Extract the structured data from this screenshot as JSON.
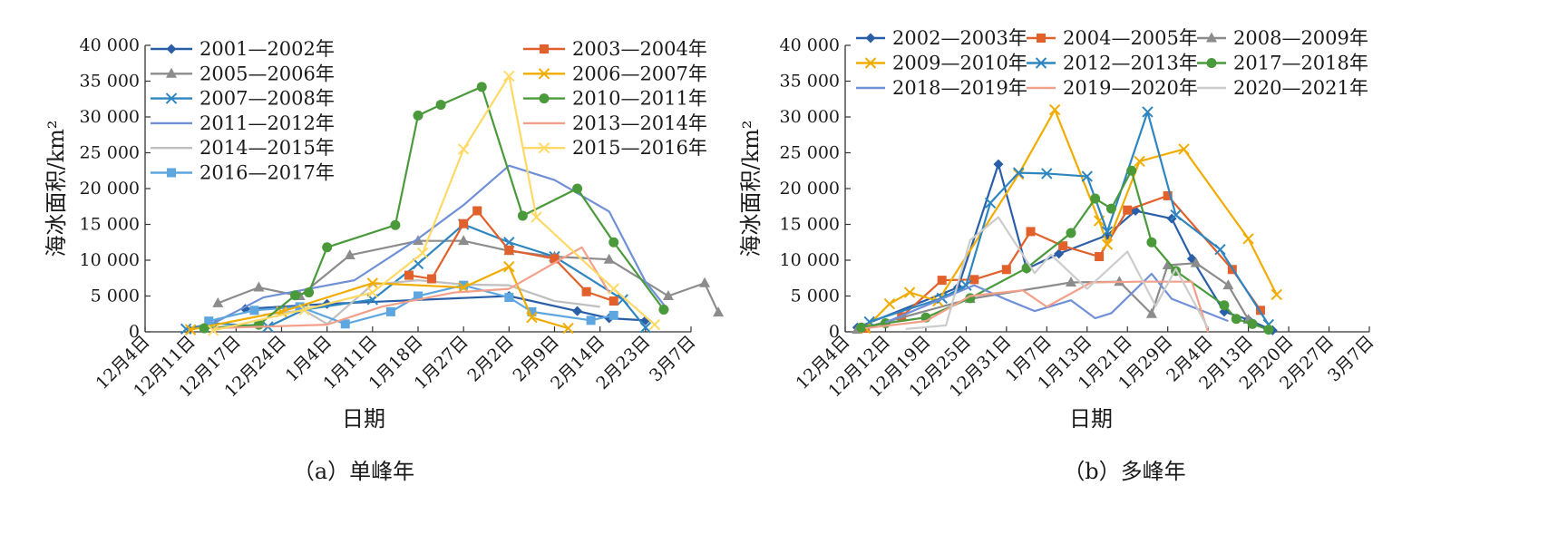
{
  "chart_data": [
    {
      "type": "line",
      "caption": "（a）单峰年",
      "xlabel": "日期",
      "ylabel": "海冰面积/km²",
      "ylim": [
        0,
        40000
      ],
      "yticks": [
        0,
        5000,
        10000,
        15000,
        20000,
        25000,
        30000,
        35000,
        40000
      ],
      "ytick_labels": [
        "0",
        "5 000",
        "10 000",
        "15 000",
        "20 000",
        "25 000",
        "30 000",
        "35 000",
        "40 000"
      ],
      "xticks": [
        "12月4日",
        "12月11日",
        "12月17日",
        "12月24日",
        "1月4日",
        "1月11日",
        "1月18日",
        "1月27日",
        "2月2日",
        "2月9日",
        "2月14日",
        "2月23日",
        "3月7日"
      ],
      "legend": "top-left and top-right",
      "series": [
        {
          "name": "2001—2002年",
          "color": "#2a5fa8",
          "marker": "diamond",
          "points": [
            [
              2.2,
              3200
            ],
            [
              4,
              3900
            ],
            [
              8,
              5000
            ],
            [
              9.5,
              2900
            ],
            [
              10.2,
              1900
            ],
            [
              11,
              1600
            ]
          ]
        },
        {
          "name": "2005—2006年",
          "color": "#8c8c8c",
          "marker": "triangle",
          "points": [
            [
              1.6,
              4000
            ],
            [
              2.5,
              6200
            ],
            [
              3.4,
              5000
            ],
            [
              4.5,
              10700
            ],
            [
              6,
              12700
            ],
            [
              7,
              12700
            ],
            [
              8,
              11300
            ],
            [
              9,
              10500
            ],
            [
              10.2,
              10100
            ],
            [
              11.5,
              5000
            ],
            [
              12.3,
              6800
            ],
            [
              12.6,
              2700
            ]
          ]
        },
        {
          "name": "2007—2008年",
          "color": "#2e86c1",
          "marker": "x",
          "points": [
            [
              0.9,
              400
            ],
            [
              1.5,
              1200
            ],
            [
              2.7,
              700
            ],
            [
              3.5,
              3100
            ],
            [
              5,
              4500
            ],
            [
              6,
              9500
            ],
            [
              7,
              15000
            ],
            [
              8,
              12500
            ],
            [
              9,
              10500
            ],
            [
              10.5,
              4500
            ],
            [
              11,
              600
            ]
          ]
        },
        {
          "name": "2011—2012年",
          "color": "#6f8fd6",
          "marker": "none",
          "points": [
            [
              1.2,
              200
            ],
            [
              2.6,
              4800
            ],
            [
              3.6,
              6000
            ],
            [
              4.6,
              7200
            ],
            [
              6,
              13000
            ],
            [
              7,
              17700
            ],
            [
              8,
              23200
            ],
            [
              9,
              21200
            ],
            [
              10.2,
              16800
            ],
            [
              11,
              7000
            ],
            [
              11.5,
              3000
            ]
          ]
        },
        {
          "name": "2014—2015年",
          "color": "#bfbfbf",
          "marker": "none",
          "points": [
            [
              2.6,
              2400
            ],
            [
              3.5,
              3000
            ],
            [
              4,
              1100
            ],
            [
              5,
              6600
            ],
            [
              6,
              7200
            ],
            [
              7,
              6600
            ],
            [
              8,
              6500
            ],
            [
              9,
              4300
            ],
            [
              10,
              3500
            ]
          ]
        },
        {
          "name": "2016—2017年",
          "color": "#5ea6e0",
          "marker": "square",
          "points": [
            [
              1.4,
              1500
            ],
            [
              2.4,
              3000
            ],
            [
              3.4,
              3500
            ],
            [
              4.4,
              1100
            ],
            [
              5.4,
              2800
            ],
            [
              6,
              5000
            ],
            [
              7,
              6500
            ],
            [
              8,
              4800
            ],
            [
              8.5,
              2800
            ],
            [
              9.8,
              1600
            ],
            [
              10.3,
              2300
            ]
          ]
        },
        {
          "name": "2003—2004年",
          "color": "#e2602b",
          "marker": "square",
          "points": [
            [
              5.8,
              7900
            ],
            [
              6.3,
              7400
            ],
            [
              7,
              15100
            ],
            [
              7.3,
              16900
            ],
            [
              8,
              11400
            ],
            [
              9,
              10200
            ],
            [
              9.7,
              5600
            ],
            [
              10.3,
              4300
            ]
          ]
        },
        {
          "name": "2006—2007年",
          "color": "#f0ad00",
          "marker": "x",
          "points": [
            [
              1,
              300
            ],
            [
              3,
              2800
            ],
            [
              5,
              6800
            ],
            [
              7,
              6200
            ],
            [
              8,
              9100
            ],
            [
              8.5,
              2000
            ],
            [
              9.3,
              500
            ]
          ]
        },
        {
          "name": "2010—2011年",
          "color": "#4a9a3b",
          "marker": "circle",
          "points": [
            [
              1.3,
              500
            ],
            [
              2.5,
              1000
            ],
            [
              3.3,
              5100
            ],
            [
              3.6,
              5500
            ],
            [
              4,
              11800
            ],
            [
              5.5,
              14900
            ],
            [
              6,
              30200
            ],
            [
              6.5,
              31700
            ],
            [
              7.4,
              34200
            ],
            [
              8.3,
              16200
            ],
            [
              9.5,
              20000
            ],
            [
              10.3,
              12500
            ],
            [
              11.4,
              3100
            ]
          ]
        },
        {
          "name": "2013—2014年",
          "color": "#f2a08a",
          "marker": "none",
          "points": [
            [
              1.5,
              500
            ],
            [
              4,
              1000
            ],
            [
              5.2,
              3500
            ],
            [
              6.8,
              5500
            ],
            [
              8,
              6000
            ],
            [
              9.6,
              11800
            ],
            [
              10.2,
              5500
            ]
          ]
        },
        {
          "name": "2015—2016年",
          "color": "#ffd966",
          "marker": "x",
          "points": [
            [
              1.5,
              200
            ],
            [
              3.5,
              3100
            ],
            [
              5,
              5500
            ],
            [
              6.1,
              11000
            ],
            [
              7,
              25500
            ],
            [
              8,
              35700
            ],
            [
              8.6,
              16000
            ],
            [
              10.3,
              6000
            ],
            [
              11.2,
              1000
            ]
          ]
        }
      ]
    },
    {
      "type": "line",
      "caption": "（b）多峰年",
      "xlabel": "日期",
      "ylabel": "海冰面积/km²",
      "ylim": [
        0,
        40000
      ],
      "yticks": [
        0,
        5000,
        10000,
        15000,
        20000,
        25000,
        30000,
        35000,
        40000
      ],
      "ytick_labels": [
        "0",
        "5 000",
        "10 000",
        "15 000",
        "20 000",
        "25 000",
        "30 000",
        "35 000",
        "40 000"
      ],
      "xticks": [
        "12月4日",
        "12月12日",
        "12月19日",
        "12月25日",
        "12月31日",
        "1月7日",
        "1月13日",
        "1月21日",
        "1月29日",
        "2月4日",
        "2月13日",
        "2月20日",
        "2月27日",
        "3月7日"
      ],
      "legend": "top",
      "series": [
        {
          "name": "2002—2003年",
          "color": "#2a5fa8",
          "marker": "diamond",
          "points": [
            [
              0.3,
              600
            ],
            [
              2.8,
              6200
            ],
            [
              3.8,
              23400
            ],
            [
              4.5,
              8800
            ],
            [
              5.3,
              10900
            ],
            [
              6.5,
              13500
            ],
            [
              7.2,
              16900
            ],
            [
              8.1,
              15800
            ],
            [
              8.6,
              10200
            ],
            [
              9.4,
              2800
            ],
            [
              10,
              1700
            ],
            [
              10.6,
              200
            ]
          ]
        },
        {
          "name": "2004—2005年",
          "color": "#e2602b",
          "marker": "square",
          "points": [
            [
              0.5,
              500
            ],
            [
              1.4,
              2100
            ],
            [
              2.4,
              7200
            ],
            [
              3.2,
              7300
            ],
            [
              4,
              8700
            ],
            [
              4.6,
              14000
            ],
            [
              5.4,
              12000
            ],
            [
              6.3,
              10500
            ],
            [
              7,
              17000
            ],
            [
              8,
              19000
            ],
            [
              9.6,
              8700
            ],
            [
              10.3,
              3000
            ]
          ]
        },
        {
          "name": "2008—2009年",
          "color": "#8c8c8c",
          "marker": "triangle",
          "points": [
            [
              0.3,
              300
            ],
            [
              3.1,
              4600
            ],
            [
              5.6,
              6900
            ],
            [
              6.8,
              7000
            ],
            [
              7.6,
              2500
            ],
            [
              8,
              9300
            ],
            [
              8.7,
              9600
            ],
            [
              9.5,
              6500
            ],
            [
              10,
              1700
            ]
          ]
        },
        {
          "name": "2009—2010年",
          "color": "#f0ad00",
          "marker": "x",
          "points": [
            [
              0.5,
              500
            ],
            [
              1.1,
              3900
            ],
            [
              1.6,
              5500
            ],
            [
              2.3,
              4300
            ],
            [
              4.3,
              22000
            ],
            [
              5.2,
              31000
            ],
            [
              6.3,
              15500
            ],
            [
              6.5,
              12200
            ],
            [
              7.3,
              23800
            ],
            [
              8.4,
              25500
            ],
            [
              10,
              13000
            ],
            [
              10.7,
              5200
            ]
          ]
        },
        {
          "name": "2012—2013年",
          "color": "#2e86c1",
          "marker": "x",
          "points": [
            [
              0.6,
              1400
            ],
            [
              2.4,
              4700
            ],
            [
              3,
              6500
            ],
            [
              3.6,
              18000
            ],
            [
              4.3,
              22200
            ],
            [
              5,
              22100
            ],
            [
              6,
              21700
            ],
            [
              6.5,
              14000
            ],
            [
              7.5,
              30700
            ],
            [
              8.2,
              16300
            ],
            [
              9.3,
              11500
            ],
            [
              10.5,
              1000
            ]
          ]
        },
        {
          "name": "2017—2018年",
          "color": "#4a9a3b",
          "marker": "circle",
          "points": [
            [
              0.4,
              600
            ],
            [
              1,
              1200
            ],
            [
              2,
              2000
            ],
            [
              3.1,
              4700
            ],
            [
              4.5,
              8900
            ],
            [
              5.6,
              13800
            ],
            [
              6.2,
              18600
            ],
            [
              6.6,
              17200
            ],
            [
              7.1,
              22500
            ],
            [
              7.6,
              12500
            ],
            [
              8.2,
              8500
            ],
            [
              9.4,
              3700
            ],
            [
              9.7,
              1800
            ],
            [
              10.1,
              1100
            ],
            [
              10.5,
              300
            ]
          ]
        },
        {
          "name": "2018—2019年",
          "color": "#6f8fd6",
          "marker": "none",
          "points": [
            [
              1,
              1300
            ],
            [
              3.2,
              6500
            ],
            [
              4,
              4500
            ],
            [
              4.7,
              2900
            ],
            [
              5.6,
              4400
            ],
            [
              6.2,
              1900
            ],
            [
              6.6,
              2600
            ],
            [
              7.6,
              8100
            ],
            [
              8.1,
              4600
            ],
            [
              9.5,
              1500
            ]
          ]
        },
        {
          "name": "2019—2020年",
          "color": "#f2a08a",
          "marker": "none",
          "points": [
            [
              0.5,
              500
            ],
            [
              2,
              1500
            ],
            [
              3.1,
              5000
            ],
            [
              4.4,
              5800
            ],
            [
              5,
              3500
            ],
            [
              6.1,
              6900
            ],
            [
              7.3,
              7000
            ],
            [
              8.6,
              7000
            ],
            [
              9,
              0
            ]
          ]
        },
        {
          "name": "2020—2021年",
          "color": "#cccccc",
          "marker": "none",
          "points": [
            [
              1.5,
              400
            ],
            [
              2.5,
              900
            ],
            [
              3.1,
              12800
            ],
            [
              3.8,
              16000
            ],
            [
              4.7,
              8200
            ],
            [
              5.1,
              10800
            ],
            [
              6,
              6000
            ],
            [
              7,
              11200
            ],
            [
              7.7,
              3600
            ],
            [
              8.2,
              8800
            ],
            [
              9,
              500
            ]
          ]
        }
      ]
    }
  ]
}
